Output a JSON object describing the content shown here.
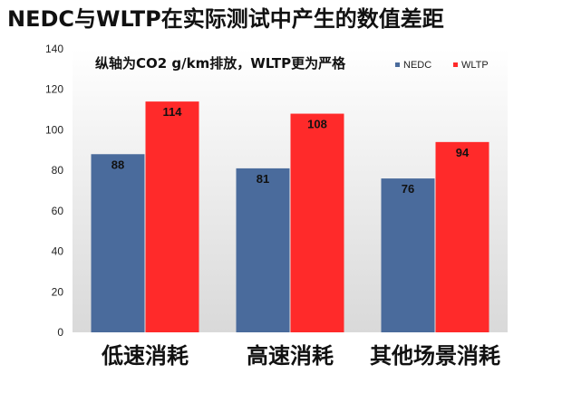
{
  "chart_data": {
    "type": "bar",
    "title": "NEDC与WLTP在实际测试中产生的数值差距",
    "subtitle": "纵轴为CO2 g/km排放，WLTP更为严格",
    "categories": [
      "低速消耗",
      "高速消耗",
      "其他场景消耗"
    ],
    "series": [
      {
        "name": "NEDC",
        "color": "#4a6b9c",
        "values": [
          88,
          81,
          76
        ]
      },
      {
        "name": "WLTP",
        "color": "#ff2a2a",
        "values": [
          114,
          108,
          94
        ]
      }
    ],
    "ylim": [
      0,
      140
    ],
    "yticks": [
      0,
      20,
      40,
      60,
      80,
      100,
      120,
      140
    ],
    "xlabel": "",
    "ylabel": "",
    "legend_position": "top-right"
  },
  "colors": {
    "plot_background_top": "#ffffff",
    "plot_background_bottom": "#d9d9d9",
    "text": "#111111"
  }
}
